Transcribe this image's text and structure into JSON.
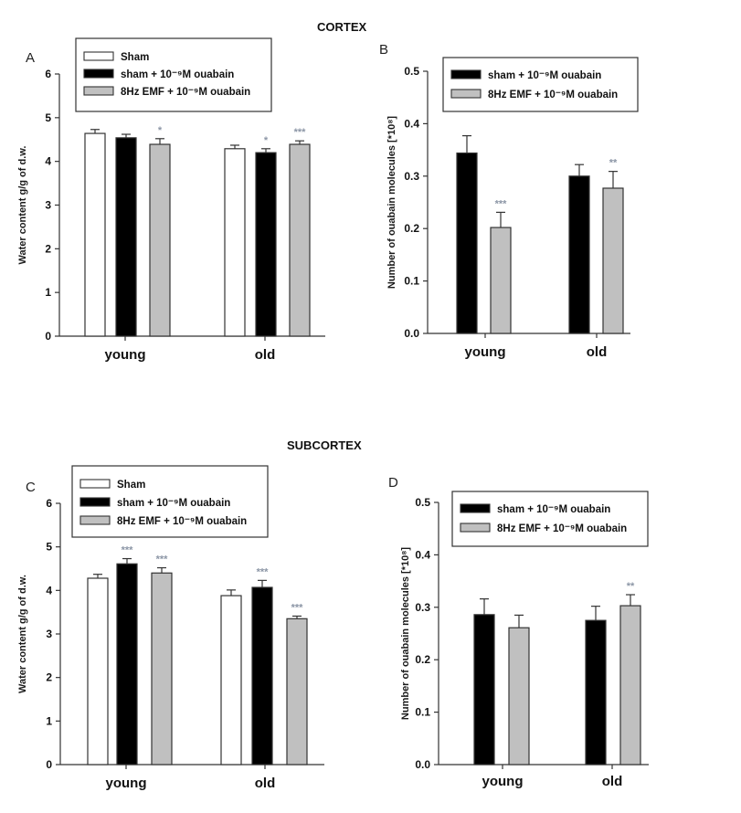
{
  "sections": {
    "top": "CORTEX",
    "bottom": "SUBCORTEX"
  },
  "legend_labels": {
    "sham": "Sham",
    "ouabain": "sham + 10⁻⁹M ouabain",
    "emf": "8Hz EMF + 10⁻⁹M ouabain"
  },
  "colors": {
    "sham": "#ffffff",
    "ouabain": "#000000",
    "emf": "#c0c0c0",
    "star": "#8c96a6"
  },
  "chart_data": [
    {
      "panel": "A",
      "section": "CORTEX",
      "type": "bar",
      "categories": [
        "young",
        "old"
      ],
      "ylabel": "Water content g/g of d.w.",
      "ylim": [
        0,
        6
      ],
      "yticks": [
        "0",
        "1",
        "2",
        "3",
        "4",
        "5",
        "6"
      ],
      "legend": [
        "Sham",
        "sham + 10⁻⁹M ouabain",
        "8Hz EMF + 10⁻⁹M ouabain"
      ],
      "legend_position": "top",
      "series": [
        {
          "name": "Sham",
          "key": "sham",
          "values": [
            4.64,
            4.29
          ],
          "errors": [
            0.09,
            0.08
          ],
          "sig": [
            "",
            ""
          ]
        },
        {
          "name": "sham + 10⁻⁹M ouabain",
          "key": "ouabain",
          "values": [
            4.54,
            4.2
          ],
          "errors": [
            0.08,
            0.09
          ],
          "sig": [
            "",
            "*"
          ]
        },
        {
          "name": "8Hz EMF + 10⁻⁹M ouabain",
          "key": "emf",
          "values": [
            4.39,
            4.39
          ],
          "errors": [
            0.13,
            0.08
          ],
          "sig": [
            "*",
            "***"
          ]
        }
      ]
    },
    {
      "panel": "B",
      "section": "CORTEX",
      "type": "bar",
      "categories": [
        "young",
        "old"
      ],
      "ylabel": "Number of ouabain molecules [*10⁸]",
      "ylim": [
        0,
        0.5
      ],
      "yticks": [
        "0.0",
        "0.1",
        "0.2",
        "0.3",
        "0.4",
        "0.5"
      ],
      "legend": [
        "sham + 10⁻⁹M ouabain",
        "8Hz EMF + 10⁻⁹M ouabain"
      ],
      "legend_position": "top-right",
      "series": [
        {
          "name": "sham + 10⁻⁹M ouabain",
          "key": "ouabain",
          "values": [
            0.344,
            0.3
          ],
          "errors": [
            0.033,
            0.022
          ],
          "sig": [
            "",
            ""
          ]
        },
        {
          "name": "8Hz EMF + 10⁻⁹M ouabain",
          "key": "emf",
          "values": [
            0.202,
            0.277
          ],
          "errors": [
            0.029,
            0.032
          ],
          "sig": [
            "***",
            "**"
          ]
        }
      ]
    },
    {
      "panel": "C",
      "section": "SUBCORTEX",
      "type": "bar",
      "categories": [
        "young",
        "old"
      ],
      "ylabel": "Water content g/g of d.w.",
      "ylim": [
        0,
        6
      ],
      "yticks": [
        "0",
        "1",
        "2",
        "3",
        "4",
        "5",
        "6"
      ],
      "legend": [
        "Sham",
        "sham + 10⁻⁹M ouabain",
        "8Hz EMF + 10⁻⁹M ouabain"
      ],
      "legend_position": "top",
      "series": [
        {
          "name": "Sham",
          "key": "sham",
          "values": [
            4.28,
            3.88
          ],
          "errors": [
            0.09,
            0.13
          ],
          "sig": [
            "",
            ""
          ]
        },
        {
          "name": "sham + 10⁻⁹M ouabain",
          "key": "ouabain",
          "values": [
            4.61,
            4.07
          ],
          "errors": [
            0.12,
            0.16
          ],
          "sig": [
            "***",
            "***"
          ]
        },
        {
          "name": "8Hz EMF + 10⁻⁹M ouabain",
          "key": "emf",
          "values": [
            4.4,
            3.35
          ],
          "errors": [
            0.12,
            0.06
          ],
          "sig": [
            "***",
            "***"
          ]
        }
      ]
    },
    {
      "panel": "D",
      "section": "SUBCORTEX",
      "type": "bar",
      "categories": [
        "young",
        "old"
      ],
      "ylabel": "Number of ouabain molecules [*10⁸]",
      "ylim": [
        0,
        0.5
      ],
      "yticks": [
        "0.0",
        "0.1",
        "0.2",
        "0.3",
        "0.4",
        "0.5"
      ],
      "legend": [
        "sham + 10⁻⁹M ouabain",
        "8Hz EMF + 10⁻⁹M ouabain"
      ],
      "legend_position": "top-right",
      "series": [
        {
          "name": "sham + 10⁻⁹M ouabain",
          "key": "ouabain",
          "values": [
            0.286,
            0.275
          ],
          "errors": [
            0.03,
            0.027
          ],
          "sig": [
            "",
            ""
          ]
        },
        {
          "name": "8Hz EMF + 10⁻⁹M ouabain",
          "key": "emf",
          "values": [
            0.261,
            0.303
          ],
          "errors": [
            0.024,
            0.021
          ],
          "sig": [
            "",
            "**"
          ]
        }
      ]
    }
  ]
}
